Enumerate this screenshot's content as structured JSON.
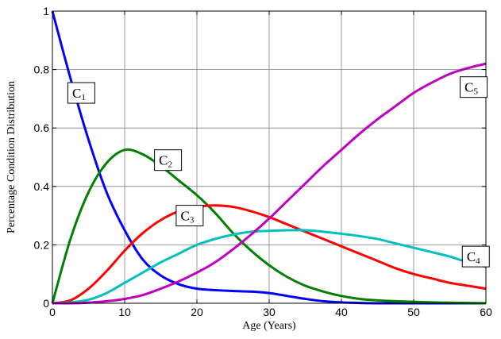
{
  "chart_data": {
    "type": "line",
    "xlabel": "Age (Years)",
    "ylabel": "Percentage Condition Distribution",
    "xlim": [
      0,
      60
    ],
    "ylim": [
      0,
      1
    ],
    "x_ticks": [
      "0",
      "10",
      "20",
      "30",
      "40",
      "50",
      "60"
    ],
    "y_ticks": [
      "0",
      "0.2",
      "0.4",
      "0.6",
      "0.8",
      "1"
    ],
    "grid": true,
    "x": [
      0,
      2.5,
      5,
      7.5,
      10,
      12.5,
      15,
      17.5,
      20,
      22.5,
      25,
      27.5,
      30,
      32.5,
      35,
      37.5,
      40,
      42.5,
      45,
      47.5,
      50,
      52.5,
      55,
      57.5,
      60
    ],
    "series": [
      {
        "label_main": "C",
        "label_sub": "1",
        "color": "#0000ff",
        "values": [
          1.0,
          0.77,
          0.56,
          0.38,
          0.25,
          0.15,
          0.095,
          0.065,
          0.05,
          0.045,
          0.042,
          0.04,
          0.035,
          0.025,
          0.015,
          0.007,
          0.003,
          0.001,
          0.0,
          0.0,
          0.0,
          0.0,
          0.0,
          0.0,
          0.0
        ]
      },
      {
        "label_main": "C",
        "label_sub": "2",
        "color": "#008000",
        "values": [
          0.0,
          0.22,
          0.38,
          0.48,
          0.525,
          0.51,
          0.47,
          0.42,
          0.37,
          0.31,
          0.24,
          0.18,
          0.13,
          0.09,
          0.06,
          0.04,
          0.025,
          0.015,
          0.01,
          0.007,
          0.005,
          0.003,
          0.002,
          0.001,
          0.0
        ]
      },
      {
        "label_main": "C",
        "label_sub": "3",
        "color": "#ff0000",
        "values": [
          0.0,
          0.01,
          0.05,
          0.11,
          0.18,
          0.24,
          0.285,
          0.315,
          0.33,
          0.335,
          0.33,
          0.315,
          0.295,
          0.27,
          0.245,
          0.22,
          0.195,
          0.17,
          0.145,
          0.12,
          0.1,
          0.085,
          0.07,
          0.06,
          0.05
        ]
      },
      {
        "label_main": "C",
        "label_sub": "4",
        "color": "#00bfbf",
        "values": [
          0.0,
          0.003,
          0.012,
          0.035,
          0.07,
          0.105,
          0.14,
          0.17,
          0.2,
          0.22,
          0.235,
          0.245,
          0.248,
          0.25,
          0.25,
          0.245,
          0.238,
          0.23,
          0.22,
          0.205,
          0.19,
          0.175,
          0.16,
          0.14,
          0.125
        ]
      },
      {
        "label_main": "C",
        "label_sub": "5",
        "color": "#bf00bf",
        "values": [
          0.0,
          0.0,
          0.002,
          0.007,
          0.015,
          0.028,
          0.05,
          0.075,
          0.105,
          0.14,
          0.185,
          0.235,
          0.29,
          0.35,
          0.41,
          0.47,
          0.525,
          0.58,
          0.63,
          0.675,
          0.72,
          0.755,
          0.785,
          0.805,
          0.82
        ]
      }
    ]
  }
}
